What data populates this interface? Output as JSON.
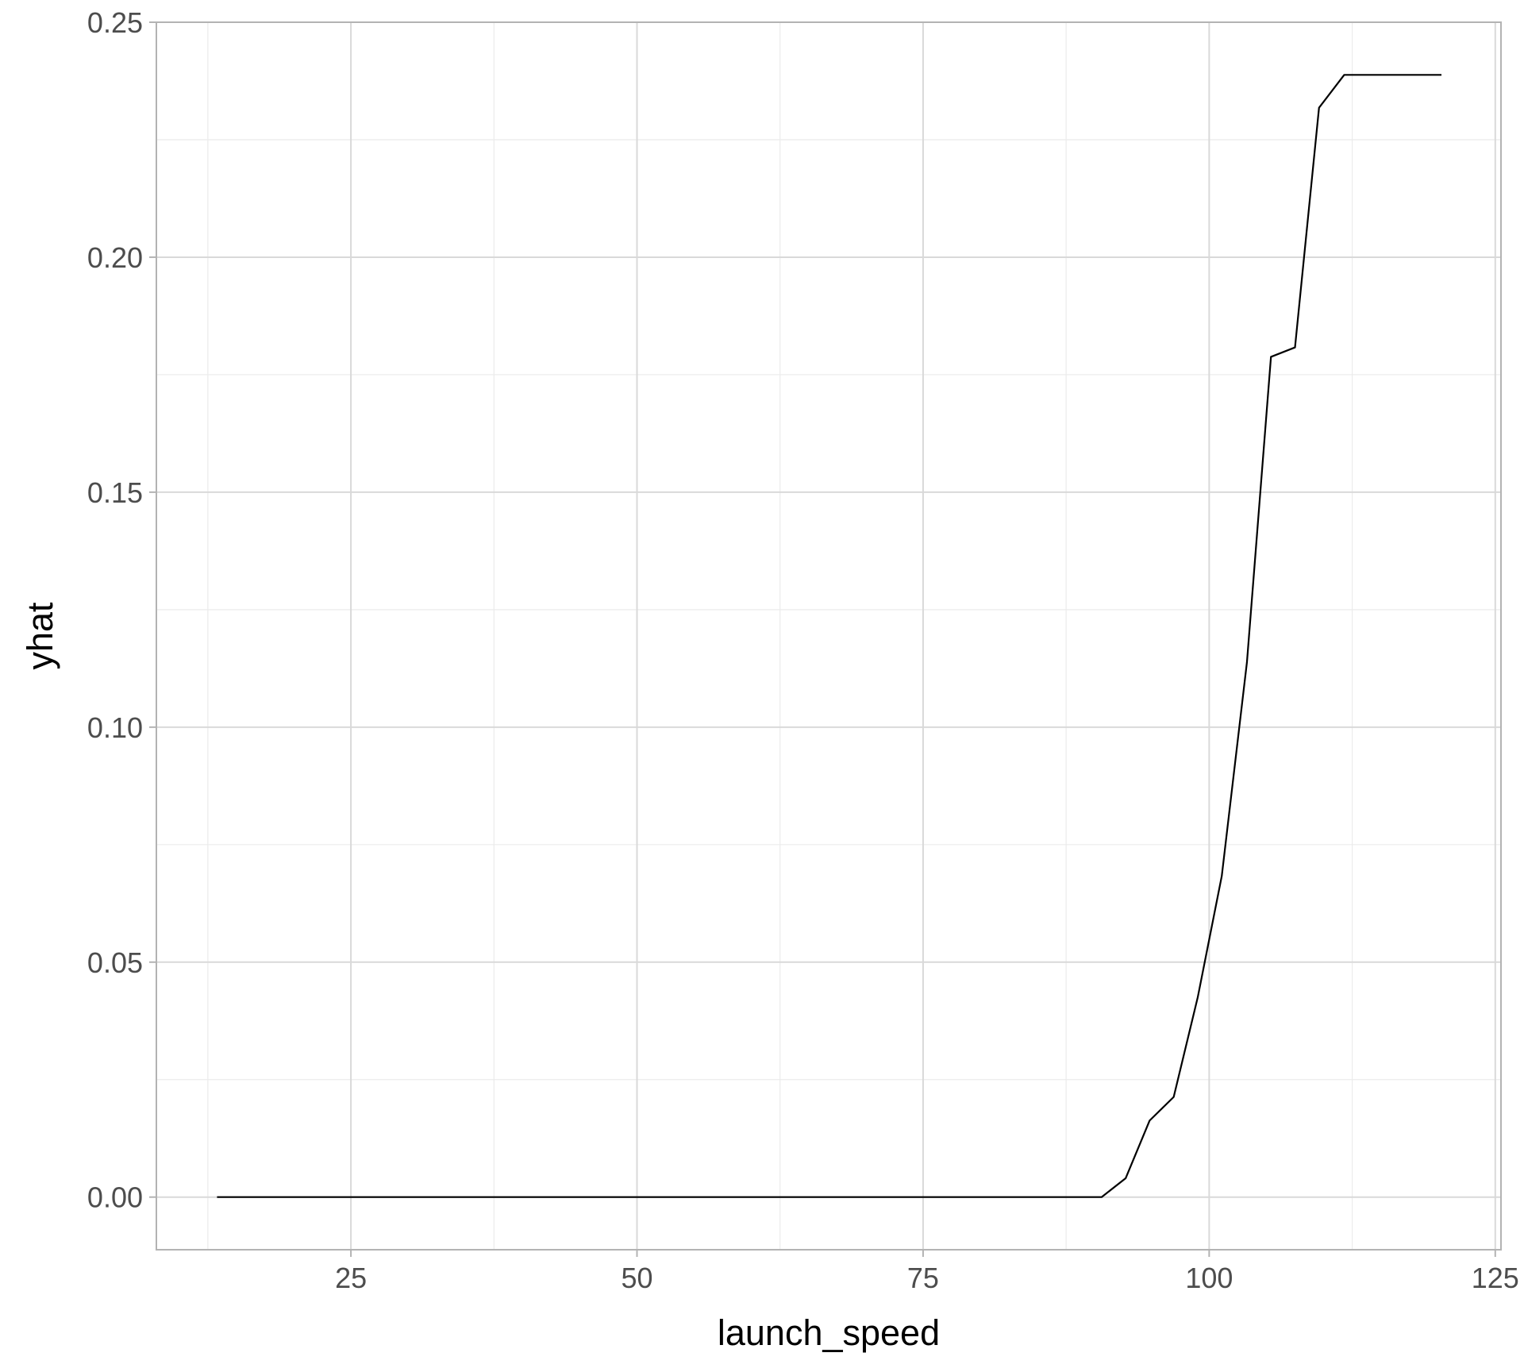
{
  "chart_data": {
    "type": "line",
    "title": "",
    "xlabel": "launch_speed",
    "ylabel": "yhat",
    "xlim": [
      8.0,
      125.5
    ],
    "ylim": [
      -0.0112,
      0.25
    ],
    "x_ticks": [
      25,
      50,
      75,
      100,
      125
    ],
    "x_tick_labels": [
      "25",
      "50",
      "75",
      "100",
      "125"
    ],
    "y_ticks": [
      0.0,
      0.05,
      0.1,
      0.15,
      0.2,
      0.25
    ],
    "y_tick_labels": [
      "0.00",
      "0.05",
      "0.10",
      "0.15",
      "0.20",
      "0.25"
    ],
    "x_minor_ticks": [
      12.5,
      37.5,
      62.5,
      87.5,
      112.5
    ],
    "y_minor_ticks": [
      0.025,
      0.075,
      0.125,
      0.175,
      0.225
    ],
    "grid": true,
    "legend": "none",
    "line_color": "#000000",
    "series": [
      {
        "name": "",
        "x": [
          13.3,
          90.6,
          92.7,
          94.8,
          96.9,
          99.0,
          101.1,
          103.3,
          105.4,
          107.5,
          109.6,
          111.8,
          120.3
        ],
        "y": [
          0.0,
          0.0,
          0.004,
          0.0163,
          0.0213,
          0.0425,
          0.0683,
          0.1138,
          0.1788,
          0.1808,
          0.2318,
          0.2388,
          0.2388
        ]
      }
    ]
  }
}
